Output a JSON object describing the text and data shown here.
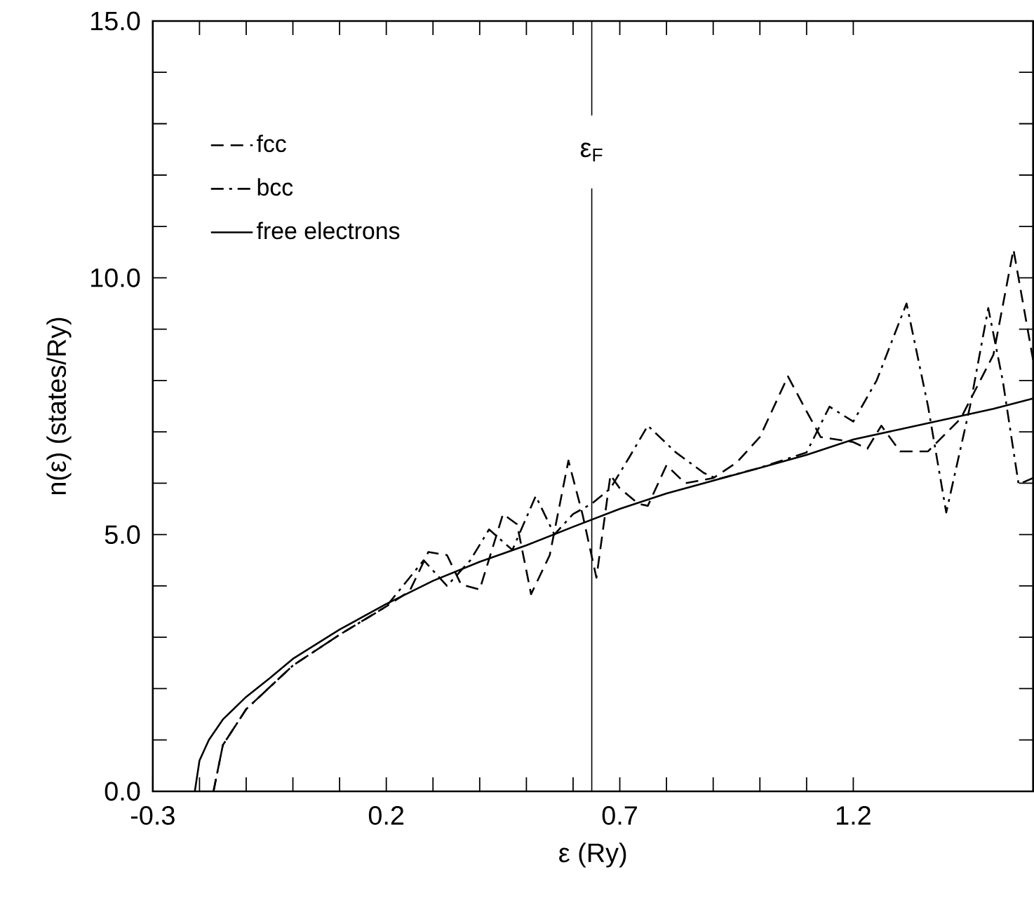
{
  "chart_data": {
    "type": "line",
    "xlabel": "ε (Ry)",
    "ylabel": "n(ε) (states/Ry)",
    "xlim": [
      -0.3,
      1.585
    ],
    "ylim": [
      0,
      15
    ],
    "xticks": [
      -0.3,
      0.2,
      0.7,
      1.2
    ],
    "yticks": [
      {
        "value": 0,
        "label": "0.0"
      },
      {
        "value": 5,
        "label": "5.0"
      },
      {
        "value": 10,
        "label": "10.0"
      },
      {
        "value": 15,
        "label": "15.0"
      }
    ],
    "legend": "top left",
    "ref_lines": [
      {
        "axis": "x",
        "value": 0.64,
        "label": "ε$_{F}$",
        "color": "#000000"
      }
    ],
    "series": [
      {
        "name": "fcc",
        "color": "#000000",
        "line_style": "dashed",
        "x": [
          -0.17,
          -0.15,
          -0.1,
          0,
          0.1,
          0.2,
          0.25,
          0.29,
          0.33,
          0.36,
          0.4,
          0.45,
          0.48,
          0.51,
          0.55,
          0.59,
          0.62,
          0.65,
          0.68,
          0.7,
          0.74,
          0.76,
          0.8,
          0.84,
          0.9,
          0.95,
          1.0,
          1.06,
          1.1,
          1.13,
          1.2,
          1.23,
          1.26,
          1.3,
          1.36,
          1.43,
          1.5,
          1.543,
          1.585
        ],
        "values": [
          0,
          0.9,
          1.6,
          2.45,
          3.05,
          3.6,
          3.9,
          4.66,
          4.6,
          4.03,
          3.93,
          5.4,
          5.2,
          3.84,
          4.6,
          6.44,
          5.4,
          4.16,
          6.16,
          5.9,
          5.6,
          5.56,
          6.35,
          6.0,
          6.1,
          6.4,
          6.9,
          8.08,
          7.4,
          6.9,
          6.8,
          6.67,
          7.12,
          6.62,
          6.62,
          7.26,
          8.5,
          10.55,
          8.4
        ]
      },
      {
        "name": "bcc",
        "color": "#000000",
        "line_style": "dashdot",
        "x": [
          -0.17,
          -0.15,
          -0.1,
          0,
          0.1,
          0.2,
          0.28,
          0.33,
          0.38,
          0.42,
          0.47,
          0.52,
          0.56,
          0.6,
          0.64,
          0.68,
          0.72,
          0.76,
          0.82,
          0.88,
          0.91,
          1.0,
          1.1,
          1.149,
          1.2,
          1.25,
          1.314,
          1.36,
          1.399,
          1.45,
          1.489,
          1.52,
          1.554,
          1.585
        ],
        "values": [
          0,
          0.9,
          1.6,
          2.45,
          3.05,
          3.6,
          4.5,
          4.0,
          4.5,
          5.1,
          4.7,
          5.75,
          5.0,
          5.4,
          5.6,
          5.9,
          6.5,
          7.12,
          6.6,
          6.2,
          6.08,
          6.3,
          6.6,
          7.49,
          7.2,
          8.0,
          9.5,
          7.5,
          5.43,
          7.5,
          9.41,
          8.0,
          5.98,
          6.1
        ]
      },
      {
        "name": "free electrons",
        "color": "#000000",
        "line_style": "solid",
        "x": [
          -0.21,
          -0.2,
          -0.18,
          -0.15,
          -0.1,
          -0.05,
          0,
          0.1,
          0.2,
          0.3,
          0.4,
          0.5,
          0.6,
          0.7,
          0.8,
          0.9,
          1.0,
          1.1,
          1.2,
          1.3,
          1.4,
          1.5,
          1.585
        ],
        "values": [
          0,
          0.6,
          1.0,
          1.4,
          1.84,
          2.2,
          2.58,
          3.15,
          3.65,
          4.1,
          4.47,
          4.79,
          5.15,
          5.5,
          5.8,
          6.05,
          6.3,
          6.55,
          6.85,
          7.05,
          7.25,
          7.45,
          7.65
        ]
      }
    ]
  }
}
